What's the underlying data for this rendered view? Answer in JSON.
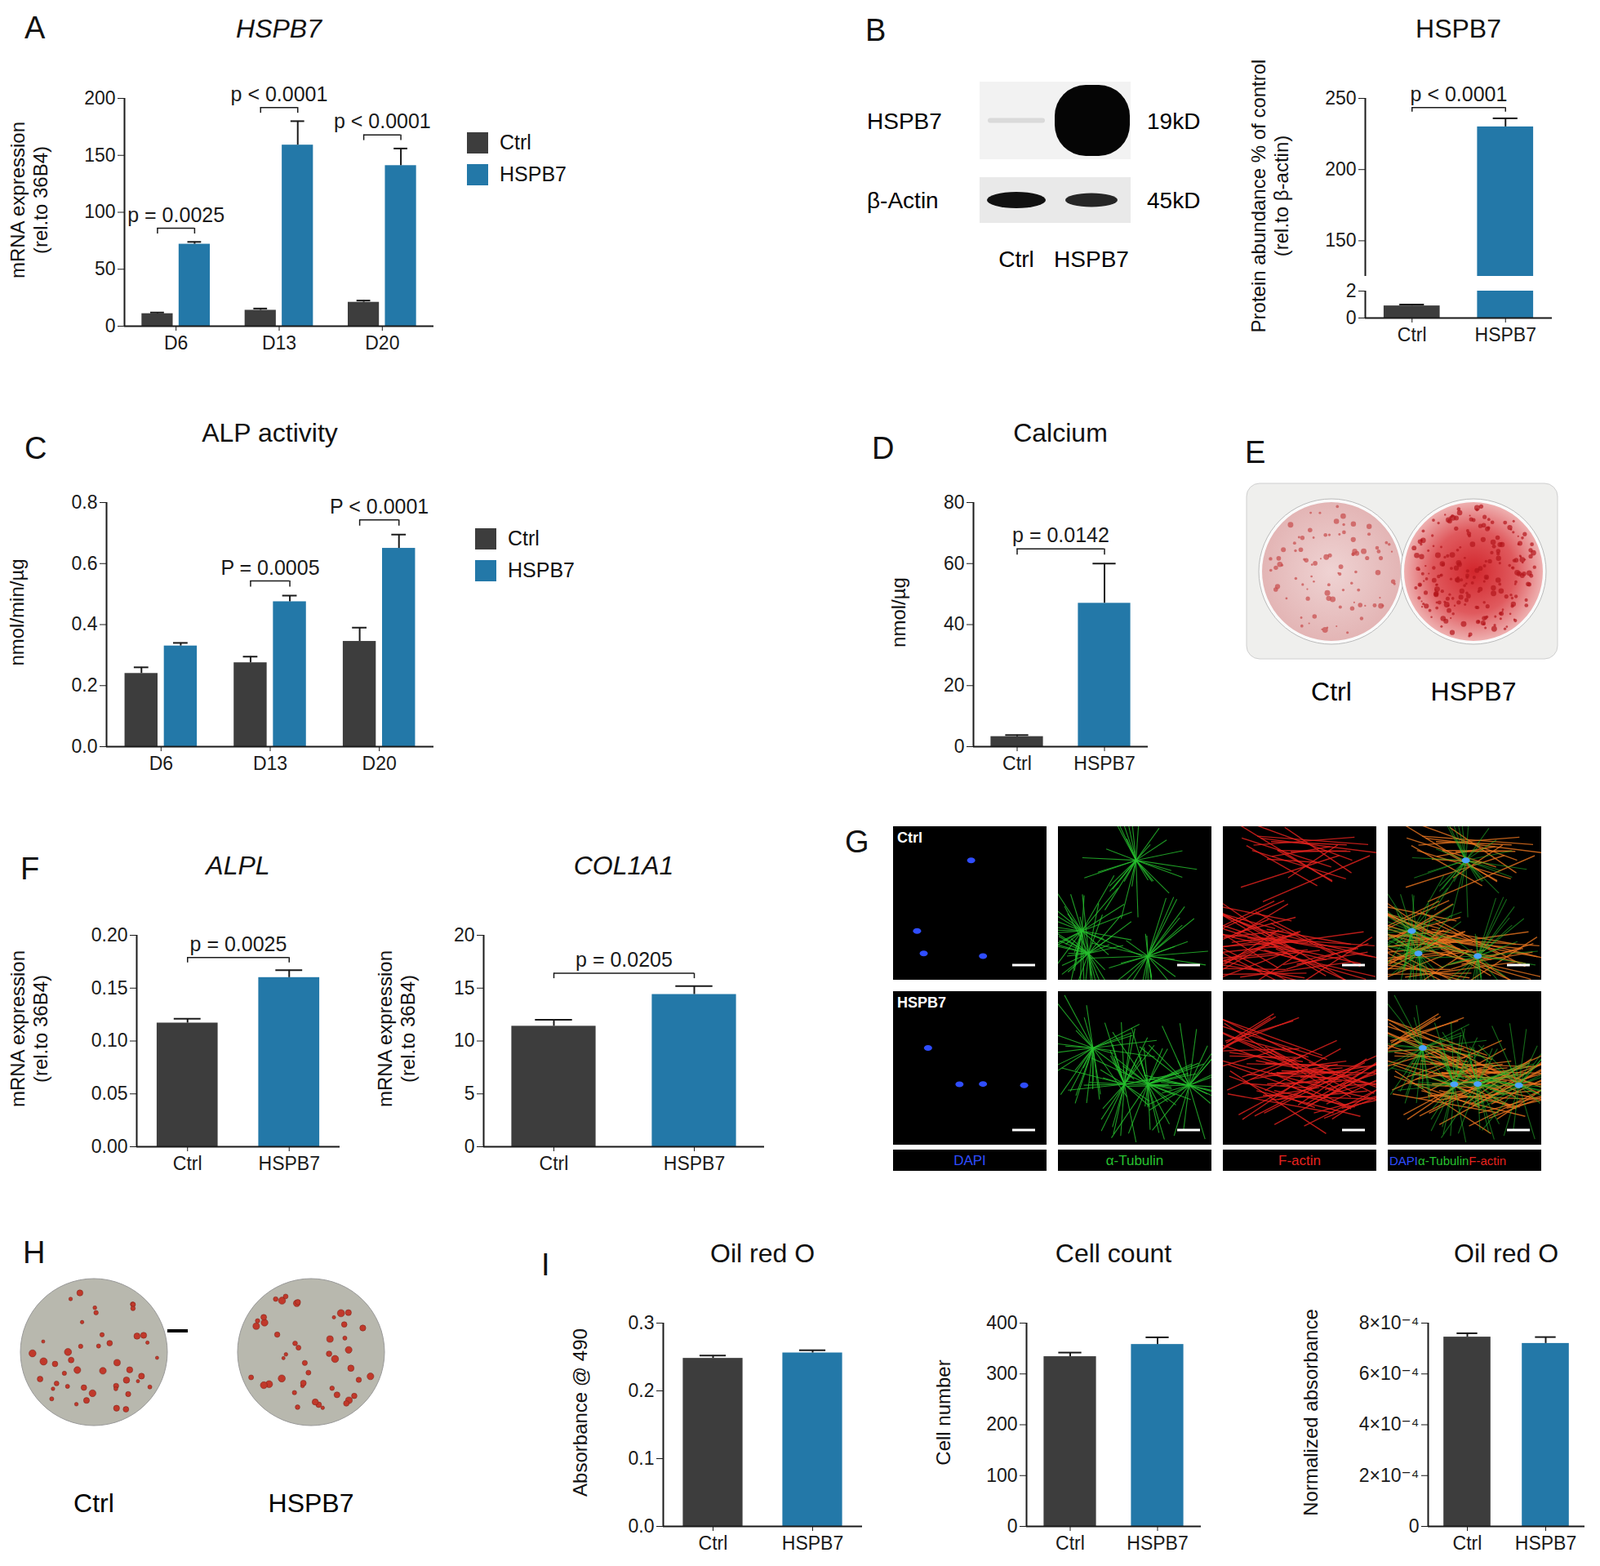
{
  "chart_data": [
    {
      "panel": "A",
      "type": "grouped_bar",
      "title": "HSPB7",
      "ylabel": "mRNA expression\n(rel.to 36B4)",
      "categories": [
        "D6",
        "D13",
        "D20"
      ],
      "series": [
        {
          "name": "Ctrl",
          "color": "#3d3d3d",
          "values": [
            11,
            14,
            21
          ],
          "errors": [
            1,
            1.5,
            1.5
          ]
        },
        {
          "name": "HSPB7",
          "color": "#2378a8",
          "values": [
            72,
            159,
            141
          ],
          "errors": [
            2,
            21,
            15
          ]
        }
      ],
      "ylim": [
        0,
        200
      ],
      "yticks": [
        0,
        50,
        100,
        150,
        200
      ],
      "legend": "right",
      "annotations": [
        {
          "category": "D6",
          "text": "p = 0.0025"
        },
        {
          "category": "D13",
          "text": "p < 0.0001"
        },
        {
          "category": "D20",
          "text": "p < 0.0001"
        }
      ]
    },
    {
      "type": "broken_bar",
      "title": "HSPB7",
      "ylabel": "Protein abundance % of control\n(rel.to β-actin)",
      "categories": [
        "Ctrl",
        "HSPB7"
      ],
      "values": [
        0.9,
        230
      ],
      "errors": [
        0.1,
        6
      ],
      "colors": [
        "#3d3d3d",
        "#2378a8"
      ],
      "segments": [
        {
          "ylim": [
            0,
            2
          ],
          "yticks": [
            0,
            2
          ]
        },
        {
          "ylim": [
            125,
            250
          ],
          "yticks": [
            150,
            200,
            250
          ]
        }
      ],
      "annotations": [
        {
          "text": "p < 0.0001"
        }
      ]
    },
    {
      "panel": "C",
      "type": "grouped_bar",
      "title": "ALP activity",
      "ylabel": "nmol/min/µg",
      "categories": [
        "D6",
        "D13",
        "D20"
      ],
      "series": [
        {
          "name": "Ctrl",
          "color": "#3d3d3d",
          "values": [
            0.24,
            0.275,
            0.345
          ],
          "errors": [
            0.02,
            0.02,
            0.045
          ]
        },
        {
          "name": "HSPB7",
          "color": "#2378a8",
          "values": [
            0.33,
            0.475,
            0.65
          ],
          "errors": [
            0.01,
            0.02,
            0.045
          ]
        }
      ],
      "ylim": [
        0,
        0.8
      ],
      "yticks": [
        {
          "value": 0,
          "label": "0.0"
        },
        0.2,
        0.4,
        0.6,
        0.8
      ],
      "legend": "right",
      "annotations": [
        {
          "category": "D13",
          "text": "P = 0.0005"
        },
        {
          "category": "D20",
          "text": "P < 0.0001"
        }
      ]
    },
    {
      "panel": "D",
      "type": "bar",
      "title": "Calcium",
      "ylabel": "nmol/µg",
      "categories": [
        "Ctrl",
        "HSPB7"
      ],
      "values": [
        3.3,
        47
      ],
      "errors": [
        0.5,
        13
      ],
      "colors": [
        "#3d3d3d",
        "#2378a8"
      ],
      "ylim": [
        0,
        80
      ],
      "yticks": [
        0,
        20,
        40,
        60,
        80
      ],
      "annotations": [
        {
          "text": "p = 0.0142"
        }
      ]
    },
    {
      "panel": "F",
      "type": "bar",
      "title": "ALPL",
      "ylabel": "mRNA expression\n(rel.to 36B4)",
      "categories": [
        "Ctrl",
        "HSPB7"
      ],
      "values": [
        0.117,
        0.16
      ],
      "errors": [
        0.004,
        0.007
      ],
      "colors": [
        "#3d3d3d",
        "#2378a8"
      ],
      "ylim": [
        0,
        0.2
      ],
      "yticks": [
        {
          "value": 0,
          "label": "0.00"
        },
        0.05,
        {
          "value": 0.1,
          "label": "0.10"
        },
        0.15,
        {
          "value": 0.2,
          "label": "0.20"
        }
      ],
      "annotations": [
        {
          "text": "p = 0.0025"
        }
      ]
    },
    {
      "type": "bar",
      "title": "COL1A1",
      "ylabel": "mRNA expression\n(rel.to 36B4)",
      "categories": [
        "Ctrl",
        "HSPB7"
      ],
      "values": [
        11.4,
        14.4
      ],
      "errors": [
        0.6,
        0.8
      ],
      "colors": [
        "#3d3d3d",
        "#2378a8"
      ],
      "ylim": [
        0,
        20
      ],
      "yticks": [
        0,
        5,
        10,
        15,
        20
      ],
      "annotations": [
        {
          "text": "p = 0.0205"
        }
      ]
    },
    {
      "panel": "I",
      "type": "bar",
      "title": "Oil red O",
      "ylabel": "Absorbance @ 490",
      "categories": [
        "Ctrl",
        "HSPB7"
      ],
      "values": [
        0.248,
        0.256
      ],
      "errors": [
        0.004,
        0.004
      ],
      "colors": [
        "#3d3d3d",
        "#2378a8"
      ],
      "ylim": [
        0,
        0.3
      ],
      "yticks": [
        {
          "value": 0,
          "label": "0.0"
        },
        0.1,
        0.2,
        0.3
      ]
    },
    {
      "type": "bar",
      "title": "Cell count",
      "ylabel": "Cell number",
      "categories": [
        "Ctrl",
        "HSPB7"
      ],
      "values": [
        334,
        358
      ],
      "errors": [
        8,
        14
      ],
      "colors": [
        "#3d3d3d",
        "#2378a8"
      ],
      "ylim": [
        0,
        400
      ],
      "yticks": [
        0,
        100,
        200,
        300,
        400
      ]
    },
    {
      "type": "bar",
      "title": "Oil red O",
      "ylabel": "Normalized absorbance",
      "categories": [
        "Ctrl",
        "HSPB7"
      ],
      "values": [
        0.000745,
        0.00072
      ],
      "errors": [
        1.5e-05,
        2.5e-05
      ],
      "colors": [
        "#3d3d3d",
        "#2378a8"
      ],
      "ylim": [
        0,
        0.0008
      ],
      "yticks": [
        0,
        {
          "value": 0.0002,
          "label": "2×10⁻⁴"
        },
        {
          "value": 0.0004,
          "label": "4×10⁻⁴"
        },
        {
          "value": 0.0006,
          "label": "6×10⁻⁴"
        },
        {
          "value": 0.0008,
          "label": "8×10⁻⁴"
        }
      ]
    }
  ],
  "images": [
    {
      "panel": "B",
      "type": "western_blot",
      "rows": [
        {
          "label": "HSPB7",
          "size": "19kD"
        },
        {
          "label": "β-Actin",
          "size": "45kD"
        }
      ],
      "lanes": [
        "Ctrl",
        "HSPB7"
      ]
    },
    {
      "panel": "E",
      "type": "photo",
      "labels": [
        "Ctrl",
        "HSPB7"
      ]
    },
    {
      "panel": "G",
      "type": "microscopy",
      "rows": [
        "Ctrl",
        "HSPB7"
      ],
      "channels": [
        {
          "name": "DAPI",
          "color": "#2f4dff"
        },
        {
          "name": "α-Tubulin",
          "color": "#27c22f"
        },
        {
          "name": "F-actin",
          "color": "#e8231f"
        }
      ]
    },
    {
      "panel": "H",
      "type": "photo",
      "labels": [
        "Ctrl",
        "HSPB7"
      ]
    }
  ]
}
